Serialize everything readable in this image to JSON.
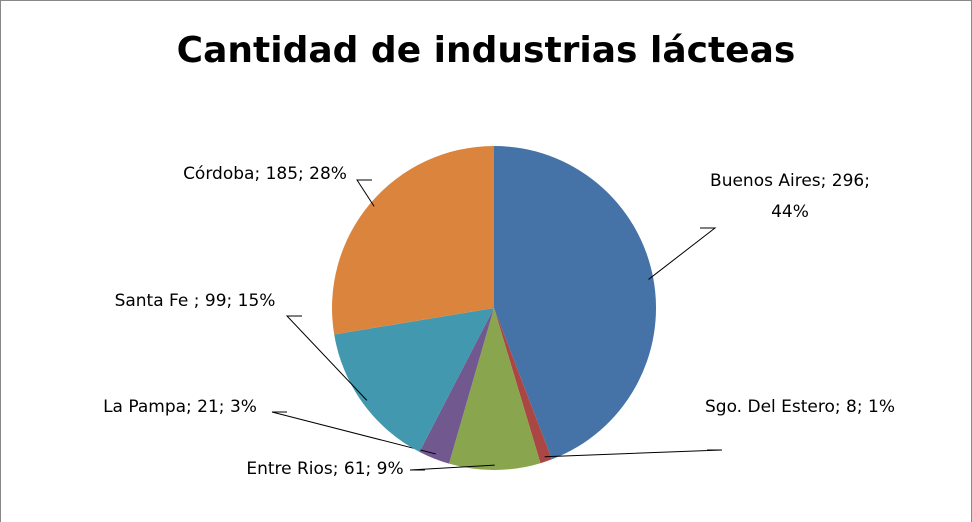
{
  "chart_data": {
    "type": "pie",
    "title": "Cantidad de industrias lácteas",
    "categories": [
      "Buenos Aires",
      "Sgo. Del Estero",
      "Entre Rios",
      "La Pampa",
      "Santa Fe ",
      "Córdoba"
    ],
    "values": [
      296,
      8,
      61,
      21,
      99,
      185
    ],
    "value_labels": [
      "; 296; 44%",
      "; 8; 1%",
      "; 61; 9%",
      "; 21; 3%",
      "; 99; 15%",
      "; 185; 28%"
    ],
    "colors": [
      "#4572a7",
      "#aa4643",
      "#89a54e",
      "#71588f",
      "#4198af",
      "#db843d"
    ]
  }
}
